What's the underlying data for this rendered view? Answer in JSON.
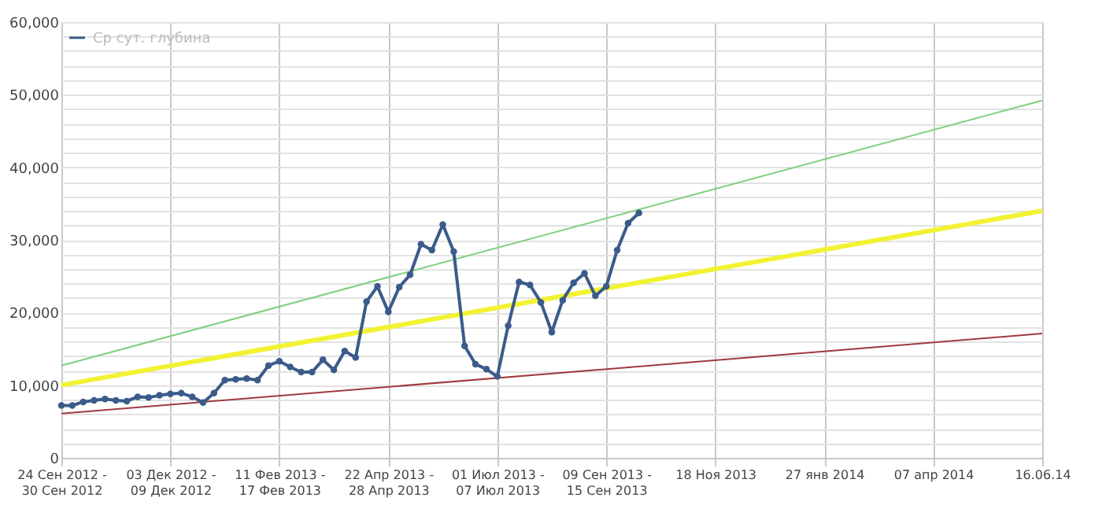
{
  "chart_data": {
    "type": "line",
    "xlim": [
      "2012-09-24",
      "2014-06-16"
    ],
    "xticks": [
      {
        "value": "2012-09-24",
        "label": "24 Сен 2012 -\n30 Сен 2012"
      },
      {
        "value": "2012-12-03",
        "label": "03 Дек 2012 -\n09 Дек 2012"
      },
      {
        "value": "2013-02-11",
        "label": "11 Фев 2013 -\n17 Фев 2013"
      },
      {
        "value": "2013-04-22",
        "label": "22 Апр 2013 -\n28 Апр 2013"
      },
      {
        "value": "2013-07-01",
        "label": "01 Июл 2013 -\n07 Июл 2013"
      },
      {
        "value": "2013-09-09",
        "label": "09 Сен 2013 -\n15 Сен 2013"
      },
      {
        "value": "2013-11-18",
        "label": "18 Ноя 2013"
      },
      {
        "value": "2014-01-27",
        "label": "27 янв 2014"
      },
      {
        "value": "2014-04-07",
        "label": "07 апр 2014"
      },
      {
        "value": "2014-06-16",
        "label": "16.06.14"
      }
    ],
    "ylim": [
      0,
      60000
    ],
    "yticks": [
      0,
      {
        "value": 2000,
        "label": null
      },
      {
        "value": 4000,
        "label": null
      },
      {
        "value": 6000,
        "label": null
      },
      {
        "value": 8000,
        "label": null
      },
      {
        "value": 10000,
        "label": "10,000"
      },
      {
        "value": 12000,
        "label": null
      },
      {
        "value": 14000,
        "label": null
      },
      {
        "value": 16000,
        "label": null
      },
      {
        "value": 18000,
        "label": null
      },
      {
        "value": 20000,
        "label": "20,000"
      },
      {
        "value": 22000,
        "label": null
      },
      {
        "value": 24000,
        "label": null
      },
      {
        "value": 26000,
        "label": null
      },
      {
        "value": 28000,
        "label": null
      },
      {
        "value": 30000,
        "label": "30,000"
      },
      {
        "value": 32000,
        "label": null
      },
      {
        "value": 34000,
        "label": null
      },
      {
        "value": 36000,
        "label": null
      },
      {
        "value": 38000,
        "label": null
      },
      {
        "value": 40000,
        "label": "40,000"
      },
      {
        "value": 42000,
        "label": null
      },
      {
        "value": 44000,
        "label": null
      },
      {
        "value": 46000,
        "label": null
      },
      {
        "value": 48000,
        "label": null
      },
      {
        "value": 50000,
        "label": "50,000"
      },
      {
        "value": 52000,
        "label": null
      },
      {
        "value": 54000,
        "label": null
      },
      {
        "value": 56000,
        "label": null
      },
      {
        "value": 58000,
        "label": null
      },
      {
        "value": 60000,
        "label": "60,000"
      }
    ],
    "grid": true,
    "legend": "top left",
    "series": [
      {
        "name": "Ср сут. глубина",
        "color": "#3b5b8a",
        "marker": "circle",
        "x": [
          "2012-09-24",
          "2012-10-01",
          "2012-10-08",
          "2012-10-15",
          "2012-10-22",
          "2012-10-29",
          "2012-11-05",
          "2012-11-12",
          "2012-11-19",
          "2012-11-26",
          "2012-12-03",
          "2012-12-10",
          "2012-12-17",
          "2012-12-24",
          "2012-12-31",
          "2013-01-07",
          "2013-01-14",
          "2013-01-21",
          "2013-01-28",
          "2013-02-04",
          "2013-02-11",
          "2013-02-18",
          "2013-02-25",
          "2013-03-04",
          "2013-03-11",
          "2013-03-18",
          "2013-03-25",
          "2013-04-01",
          "2013-04-08",
          "2013-04-15",
          "2013-04-22",
          "2013-04-29",
          "2013-05-06",
          "2013-05-13",
          "2013-05-20",
          "2013-05-27",
          "2013-06-03",
          "2013-06-10",
          "2013-06-17",
          "2013-06-24",
          "2013-07-01",
          "2013-07-08",
          "2013-07-15",
          "2013-07-22",
          "2013-07-29",
          "2013-08-05",
          "2013-08-12",
          "2013-08-19",
          "2013-08-26",
          "2013-09-02",
          "2013-09-09",
          "2013-09-16",
          "2013-09-23",
          "2013-09-30"
        ],
        "values": [
          7200,
          7200,
          7700,
          7900,
          8100,
          7900,
          7800,
          8400,
          8300,
          8600,
          8800,
          8900,
          8400,
          7600,
          8900,
          10700,
          10800,
          10900,
          10700,
          12700,
          13300,
          12500,
          11800,
          11800,
          13500,
          12100,
          14700,
          13800,
          21500,
          23600,
          20100,
          23500,
          25200,
          29400,
          28600,
          32100,
          28400,
          15400,
          12900,
          12200,
          11200,
          18200,
          24200,
          23800,
          21400,
          17300,
          21700,
          24100,
          25400,
          22300,
          23600,
          28600,
          32300,
          33700
        ]
      },
      {
        "color": "#7ed07e",
        "marker": "none",
        "x": [
          "2012-09-24",
          "2014-06-16"
        ],
        "values": [
          12700,
          49200
        ]
      },
      {
        "color": "#f2f235",
        "marker": "none",
        "x": [
          "2012-09-24",
          "2014-06-16"
        ],
        "values": [
          10000,
          34000
        ]
      },
      {
        "color": "#a0393f",
        "marker": "none",
        "x": [
          "2012-09-24",
          "2014-06-16"
        ],
        "values": [
          6100,
          17100
        ]
      }
    ]
  }
}
